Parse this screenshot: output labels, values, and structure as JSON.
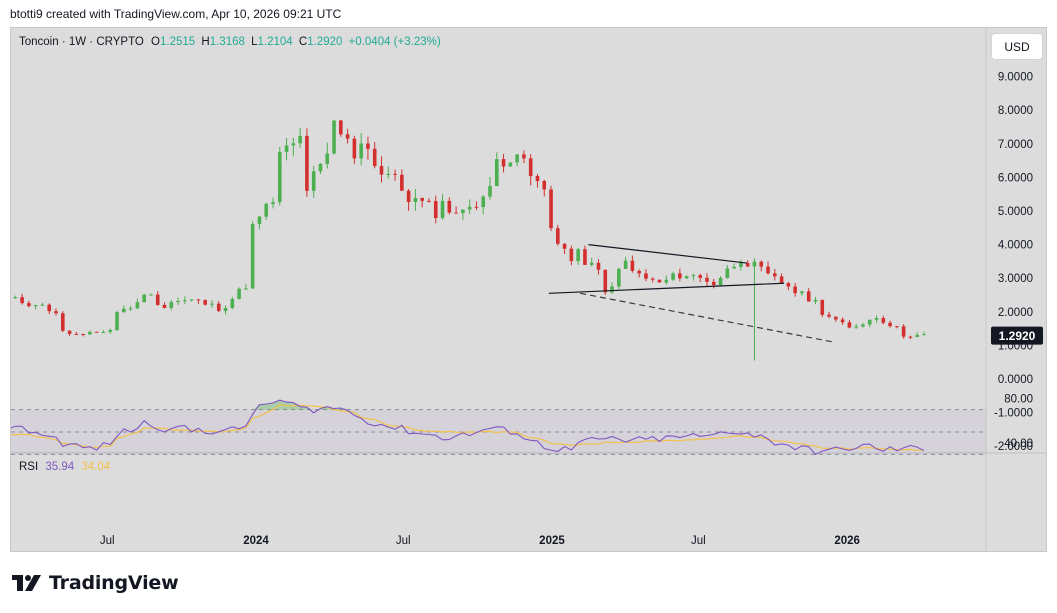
{
  "header": {
    "credit": "btotti9 created with TradingView.com, Apr 10, 2026 09:21 UTC"
  },
  "legend": {
    "symbol": "Toncoin · 1W · CRYPTO",
    "open_label": "O",
    "open": "1.2515",
    "high_label": "H",
    "high": "1.3168",
    "low_label": "L",
    "low": "1.2104",
    "close_label": "C",
    "close": "1.2920",
    "change": "+0.0404 (+3.23%)"
  },
  "currency_button": "USD",
  "last_price": "1.2920",
  "rsi_legend": {
    "label": "RSI",
    "value": "35.94",
    "ma_value": "34.04"
  },
  "brand": {
    "name": "TradingView"
  },
  "colors": {
    "up": "#22ab94",
    "down": "#f23645",
    "bull_candle": "#4caf50",
    "bear_candle": "#d32f2f",
    "rsi_line": "#7e57c2",
    "rsi_ma": "#f2c24b",
    "background": "#dcdcdc"
  },
  "chart_data": {
    "type": "candlestick",
    "symbol": "Toncoin",
    "interval": "1W",
    "y_axis": {
      "ticks": [
        "9.0000",
        "8.0000",
        "7.0000",
        "6.0000",
        "5.0000",
        "4.0000",
        "3.0000",
        "2.0000",
        "1.0000",
        "0.0000",
        "-1.0000",
        "-2.0000"
      ],
      "range": [
        -2.3,
        9.6
      ]
    },
    "x_axis": {
      "ticks": [
        "Jul",
        "2024",
        "Jul",
        "2025",
        "Jul",
        "2026"
      ]
    },
    "rsi": {
      "ticks": [
        "80.00",
        "40.00"
      ],
      "range": [
        25,
        85
      ],
      "bands": [
        30,
        50,
        70
      ]
    },
    "price_path": [
      [
        2.4,
        2.2
      ],
      [
        2.25,
        1.9
      ],
      [
        1.4,
        1.25
      ],
      [
        1.35,
        1.5
      ],
      [
        2.0,
        2.3
      ],
      [
        2.6,
        2.0
      ],
      [
        2.3,
        2.35
      ],
      [
        2.3,
        2.05
      ],
      [
        2.2,
        3.0
      ],
      [
        4.5,
        5.6
      ],
      [
        6.6,
        7.3
      ],
      [
        5.7,
        6.8
      ],
      [
        7.6,
        6.4
      ],
      [
        7.2,
        5.8
      ],
      [
        6.1,
        5.2
      ],
      [
        5.3,
        4.9
      ],
      [
        5.2,
        4.8
      ],
      [
        5.2,
        5.7
      ],
      [
        6.5,
        6.9
      ],
      [
        6.3,
        5.3
      ],
      [
        4.5,
        3.2
      ],
      [
        3.7,
        3.0
      ],
      [
        2.55,
        3.8
      ],
      [
        3.2,
        2.8
      ],
      [
        2.85,
        3.2
      ],
      [
        3.1,
        2.9
      ],
      [
        2.85,
        3.6
      ],
      [
        3.6,
        3.1
      ],
      [
        3.05,
        2.7
      ],
      [
        2.6,
        2.2
      ],
      [
        2.0,
        1.5
      ],
      [
        1.5,
        1.85
      ],
      [
        1.85,
        1.4
      ],
      [
        1.3,
        1.3
      ]
    ],
    "rsi_path": [
      [
        55,
        50
      ],
      [
        50,
        42
      ],
      [
        40,
        35
      ],
      [
        35,
        40
      ],
      [
        48,
        56
      ],
      [
        58,
        52
      ],
      [
        55,
        50
      ],
      [
        52,
        50
      ],
      [
        50,
        57
      ],
      [
        68,
        80
      ],
      [
        78,
        70
      ],
      [
        70,
        72
      ],
      [
        72,
        65
      ],
      [
        62,
        55
      ],
      [
        55,
        50
      ],
      [
        50,
        45
      ],
      [
        45,
        48
      ],
      [
        48,
        55
      ],
      [
        52,
        50
      ],
      [
        45,
        35
      ],
      [
        36,
        33
      ],
      [
        40,
        44
      ],
      [
        44,
        42
      ],
      [
        42,
        44
      ],
      [
        44,
        45
      ],
      [
        47,
        44
      ],
      [
        48,
        52
      ],
      [
        50,
        45
      ],
      [
        42,
        38
      ],
      [
        36,
        32
      ],
      [
        33,
        34
      ],
      [
        36,
        38
      ],
      [
        34,
        35
      ],
      [
        35,
        36
      ]
    ],
    "rsi_ma_path": [
      [
        48,
        48
      ],
      [
        46,
        42
      ],
      [
        40,
        36
      ],
      [
        36,
        38
      ],
      [
        44,
        52
      ],
      [
        54,
        53
      ],
      [
        52,
        51
      ],
      [
        51,
        50
      ],
      [
        50,
        55
      ],
      [
        62,
        72
      ],
      [
        74,
        74
      ],
      [
        73,
        72
      ],
      [
        70,
        66
      ],
      [
        63,
        58
      ],
      [
        56,
        53
      ],
      [
        52,
        50
      ],
      [
        50,
        50
      ],
      [
        50,
        51
      ],
      [
        50,
        49
      ],
      [
        46,
        42
      ],
      [
        40,
        38
      ],
      [
        39,
        40
      ],
      [
        41,
        41
      ],
      [
        41,
        42
      ],
      [
        42,
        43
      ],
      [
        43,
        44
      ],
      [
        45,
        46
      ],
      [
        46,
        45
      ],
      [
        43,
        41
      ],
      [
        40,
        37
      ],
      [
        36,
        35
      ],
      [
        35,
        36
      ],
      [
        35,
        34
      ],
      [
        34,
        34
      ]
    ],
    "annotations": [
      {
        "type": "trendline",
        "style": "solid",
        "from": [
          "2025-02-15",
          4.0
        ],
        "to": [
          "2025-08-30",
          3.45
        ]
      },
      {
        "type": "trendline",
        "style": "solid",
        "from": [
          "2024-12-28",
          2.55
        ],
        "to": [
          "2025-10-15",
          2.85
        ]
      },
      {
        "type": "trendline",
        "style": "dashed",
        "from": [
          "2025-02-05",
          2.55
        ],
        "to": [
          "2025-12-15",
          1.1
        ]
      }
    ]
  }
}
